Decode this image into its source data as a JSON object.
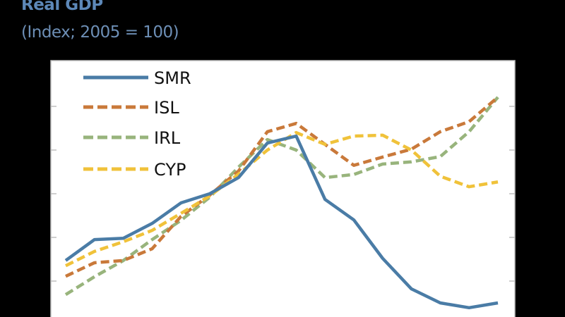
{
  "chart_data": {
    "type": "line",
    "title": "Real GDP",
    "subtitle": "(Index; 2005 = 100)",
    "xlabel": "",
    "ylabel": "",
    "x": [
      0,
      1,
      2,
      3,
      4,
      5,
      6,
      7,
      8,
      9,
      10,
      11,
      12,
      13,
      14,
      15
    ],
    "ylim": [
      0.2,
      6.05
    ],
    "yticks": [
      1,
      2,
      3,
      4,
      5
    ],
    "grid": false,
    "legend_position": "top-left",
    "series": [
      {
        "name": "SMR",
        "style": "solid",
        "color": "#4a7ca6",
        "values": [
          1.47,
          1.95,
          1.98,
          2.32,
          2.79,
          3.0,
          3.37,
          4.16,
          4.32,
          2.87,
          2.4,
          1.52,
          0.82,
          0.5,
          0.39,
          0.5
        ]
      },
      {
        "name": "ISL",
        "style": "dashed",
        "color": "#c9793a",
        "values": [
          1.11,
          1.42,
          1.47,
          1.74,
          2.48,
          2.97,
          3.52,
          4.42,
          4.61,
          4.13,
          3.65,
          3.84,
          4.02,
          4.42,
          4.65,
          5.21
        ]
      },
      {
        "name": "IRL",
        "style": "dashed",
        "color": "#98b47c",
        "values": [
          0.69,
          1.1,
          1.47,
          1.95,
          2.39,
          2.92,
          3.61,
          4.24,
          4.0,
          3.37,
          3.44,
          3.68,
          3.73,
          3.85,
          4.42,
          5.21
        ]
      },
      {
        "name": "CYP",
        "style": "dashed",
        "color": "#f0c23a",
        "values": [
          1.35,
          1.68,
          1.9,
          2.16,
          2.55,
          2.95,
          3.45,
          4.0,
          4.4,
          4.13,
          4.32,
          4.34,
          4.0,
          3.4,
          3.16,
          3.27
        ]
      }
    ]
  }
}
